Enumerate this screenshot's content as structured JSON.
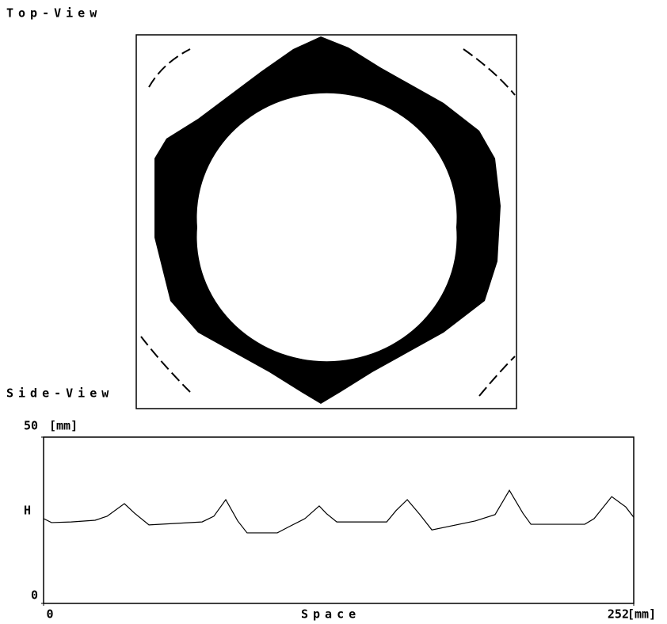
{
  "top_view": {
    "title": "Top-View"
  },
  "chart_data": {
    "type": "line",
    "title": "Side-View",
    "y_label": "H",
    "y_unit": "[mm]",
    "x_label": "Space",
    "x_unit": "[mm]",
    "x": [
      0,
      3.4,
      11.8,
      22.0,
      27.1,
      34.5,
      38.9,
      45.0,
      67.7,
      72.7,
      77.8,
      82.9,
      86.9,
      99.8,
      104.9,
      111.6,
      117.7,
      120.8,
      125.2,
      146.5,
      150.5,
      155.3,
      160.7,
      165.8,
      184.4,
      192.8,
      198.9,
      204.7,
      208.1,
      231.1,
      235.1,
      242.6,
      248.6,
      252
    ],
    "series": [
      {
        "color": "#000000",
        "values": [
          25.5,
          24.3,
          24.5,
          25.0,
          26.2,
          30.0,
          27.1,
          23.6,
          24.5,
          26.2,
          31.2,
          24.8,
          21.2,
          21.2,
          23.1,
          25.5,
          29.3,
          27.0,
          24.5,
          24.5,
          27.9,
          31.2,
          26.7,
          22.1,
          24.8,
          26.7,
          34.0,
          27.1,
          23.8,
          23.8,
          25.5,
          32.1,
          29.0,
          25.9
        ]
      }
    ],
    "xlim": [
      0,
      252
    ],
    "xticks": [
      0,
      252
    ],
    "ylim": [
      0,
      50
    ],
    "yticks": [
      0,
      50
    ]
  }
}
